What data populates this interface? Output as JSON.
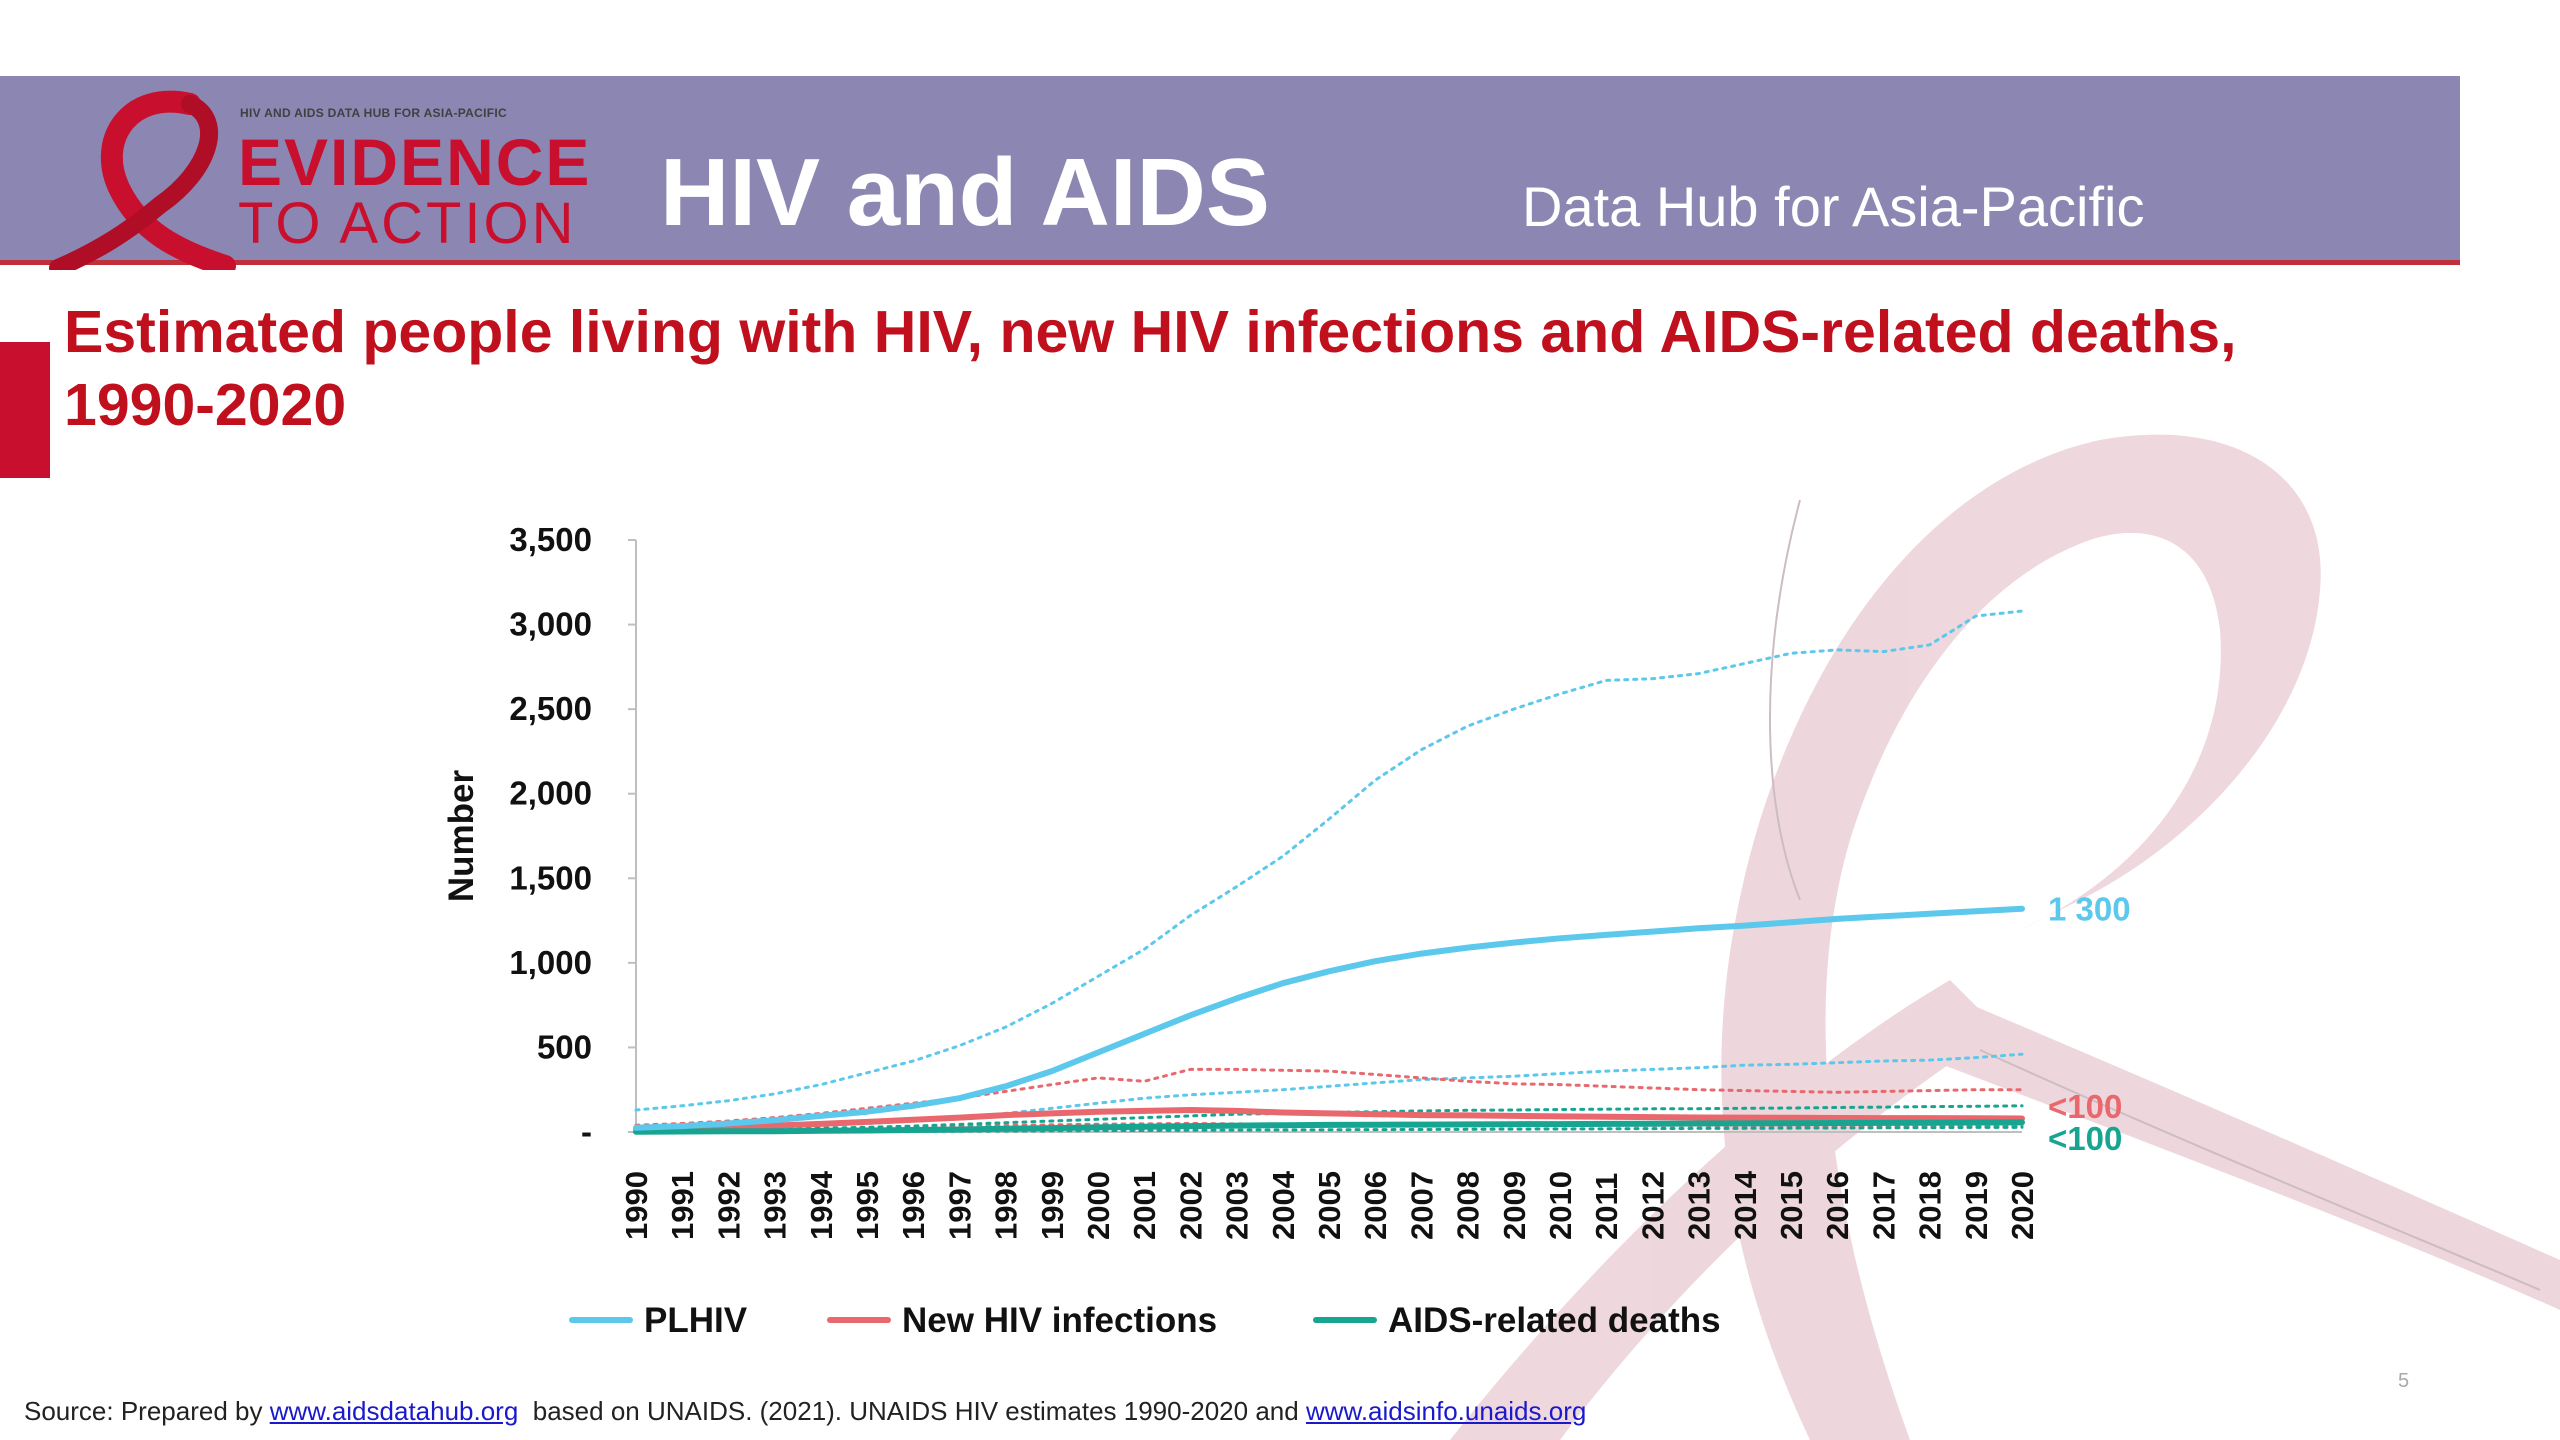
{
  "header": {
    "logo_tagline": "HIV AND AIDS DATA HUB FOR ASIA-PACIFIC",
    "logo_line1": "EVIDENCE",
    "logo_line2": "TO ACTION",
    "title": "HIV and AIDS",
    "subtitle": "Data Hub for Asia-Pacific"
  },
  "slide_title": "Estimated people living with HIV, new HIV infections and AIDS-related deaths, 1990-2020",
  "source": {
    "prefix": "Source: Prepared by ",
    "link1": "www.aidsdatahub.org",
    "middle": "  based on UNAIDS. (2021). UNAIDS HIV estimates 1990-2020 and ",
    "link2": "www.aidsinfo.unaids.org"
  },
  "page_number": "5",
  "colors": {
    "header_bg": "#8b87b2",
    "accent_red": "#c8102e",
    "plhiv": "#5bc8ec",
    "new_infections": "#e8686e",
    "deaths": "#17a592"
  },
  "chart_data": {
    "type": "line",
    "ylabel": "Number",
    "xlabel": "",
    "ylim": [
      0,
      3500
    ],
    "yticks": [
      0,
      500,
      1000,
      1500,
      2000,
      2500,
      3000,
      3500
    ],
    "ytick_labels": [
      "-",
      "500",
      "1,000",
      "1,500",
      "2,000",
      "2,500",
      "3,000",
      "3,500"
    ],
    "x": [
      "1990",
      "1991",
      "1992",
      "1993",
      "1994",
      "1995",
      "1996",
      "1997",
      "1998",
      "1999",
      "2000",
      "2001",
      "2002",
      "2003",
      "2004",
      "2005",
      "2006",
      "2007",
      "2008",
      "2009",
      "2010",
      "2011",
      "2012",
      "2013",
      "2014",
      "2015",
      "2016",
      "2017",
      "2018",
      "2019",
      "2020"
    ],
    "legend_position": "bottom",
    "series": [
      {
        "name": "PLHIV",
        "key": "plhiv",
        "values": [
          25,
          35,
          50,
          70,
          95,
          120,
          155,
          200,
          270,
          360,
          470,
          580,
          690,
          790,
          880,
          950,
          1010,
          1055,
          1090,
          1120,
          1145,
          1165,
          1185,
          1205,
          1220,
          1240,
          1260,
          1275,
          1290,
          1305,
          1320
        ],
        "end_label": "1 300"
      },
      {
        "key": "plhiv",
        "bound": "upper",
        "values": [
          130,
          155,
          185,
          225,
          280,
          350,
          420,
          510,
          620,
          760,
          920,
          1080,
          1280,
          1450,
          1630,
          1850,
          2080,
          2260,
          2400,
          2500,
          2590,
          2670,
          2680,
          2710,
          2770,
          2830,
          2850,
          2840,
          2880,
          3050,
          3080
        ]
      },
      {
        "key": "plhiv",
        "bound": "lower",
        "values": [
          10,
          15,
          20,
          28,
          38,
          50,
          65,
          85,
          110,
          140,
          170,
          200,
          220,
          235,
          250,
          270,
          290,
          310,
          320,
          330,
          345,
          360,
          370,
          380,
          395,
          400,
          410,
          420,
          425,
          440,
          460
        ]
      },
      {
        "name": "New HIV infections",
        "key": "new_infections",
        "values": [
          20,
          25,
          30,
          38,
          48,
          60,
          72,
          85,
          100,
          110,
          120,
          125,
          130,
          125,
          115,
          110,
          105,
          100,
          98,
          95,
          92,
          90,
          88,
          86,
          85,
          84,
          83,
          82,
          82,
          81,
          80
        ],
        "end_label": "<100"
      },
      {
        "key": "new_infections",
        "bound": "upper",
        "values": [
          40,
          50,
          65,
          85,
          110,
          140,
          170,
          200,
          240,
          280,
          320,
          300,
          370,
          370,
          365,
          360,
          340,
          320,
          300,
          285,
          280,
          270,
          260,
          250,
          245,
          240,
          235,
          240,
          245,
          250,
          250
        ]
      },
      {
        "key": "new_infections",
        "bound": "lower",
        "values": [
          5,
          7,
          10,
          14,
          18,
          22,
          28,
          33,
          38,
          42,
          46,
          48,
          50,
          48,
          46,
          45,
          44,
          43,
          42,
          41,
          40,
          40,
          39,
          39,
          38,
          38,
          38,
          37,
          37,
          36,
          36
        ]
      },
      {
        "name": "AIDS-related deaths",
        "key": "deaths",
        "values": [
          2,
          3,
          4,
          5,
          7,
          9,
          12,
          15,
          19,
          23,
          27,
          31,
          35,
          38,
          40,
          42,
          43,
          44,
          45,
          46,
          47,
          48,
          49,
          50,
          51,
          52,
          53,
          54,
          55,
          56,
          57
        ],
        "end_label": "<100"
      },
      {
        "key": "deaths",
        "bound": "upper",
        "values": [
          8,
          10,
          13,
          17,
          22,
          28,
          35,
          45,
          55,
          65,
          75,
          85,
          95,
          105,
          110,
          115,
          120,
          125,
          128,
          130,
          133,
          135,
          137,
          138,
          140,
          142,
          145,
          147,
          150,
          152,
          155
        ]
      },
      {
        "key": "deaths",
        "bound": "lower",
        "values": [
          1,
          1,
          1,
          2,
          2,
          3,
          4,
          5,
          6,
          7,
          8,
          9,
          10,
          11,
          12,
          13,
          14,
          15,
          16,
          17,
          18,
          19,
          20,
          21,
          22,
          23,
          24,
          25,
          26,
          27,
          28
        ]
      }
    ]
  }
}
